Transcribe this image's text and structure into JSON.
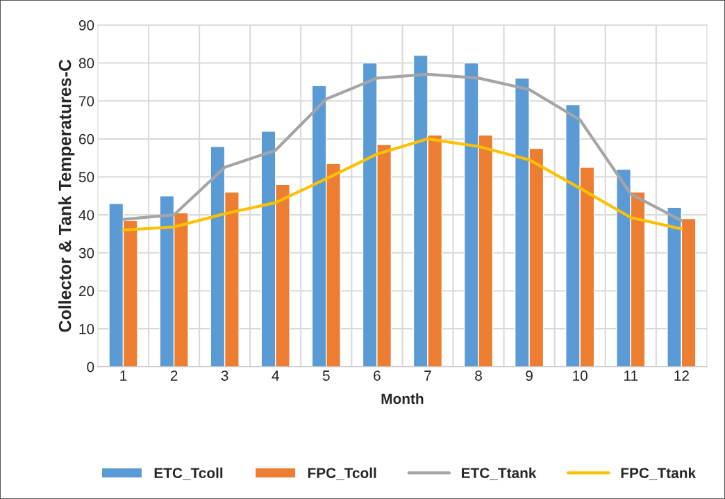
{
  "chart_data": {
    "type": "bar",
    "xlabel": "Month",
    "ylabel": "Collector & Tank Temperatures-C",
    "categories": [
      "1",
      "2",
      "3",
      "4",
      "5",
      "6",
      "7",
      "8",
      "9",
      "10",
      "11",
      "12"
    ],
    "series": [
      {
        "name": "ETC_Tcoll",
        "color": "#5b9bd5",
        "values": [
          43,
          45,
          58,
          62,
          74,
          80,
          82,
          80,
          76,
          69,
          52,
          42
        ]
      },
      {
        "name": "FPC_Tcoll",
        "color": "#ed7d31",
        "values": [
          38.5,
          40.5,
          46,
          48,
          53.5,
          58.5,
          61,
          61,
          57.5,
          52.5,
          46,
          39
        ]
      },
      {
        "name": "ETC_Ttank",
        "type": "line",
        "color": "#a5a5a5",
        "values": [
          38.8,
          40,
          52.5,
          57,
          70.5,
          76,
          77,
          76,
          73,
          65,
          45.5,
          38.5
        ]
      },
      {
        "name": "FPC_Ttank",
        "type": "line",
        "color": "#ffc000",
        "values": [
          36,
          36.8,
          40.3,
          43.2,
          49.5,
          56,
          60,
          58,
          54.5,
          47,
          39.3,
          36.3
        ]
      }
    ],
    "ylim": [
      0,
      90
    ],
    "yticks": [
      0,
      10,
      20,
      30,
      40,
      50,
      60,
      70,
      80,
      90
    ],
    "grid": true,
    "legend": "bottom"
  }
}
